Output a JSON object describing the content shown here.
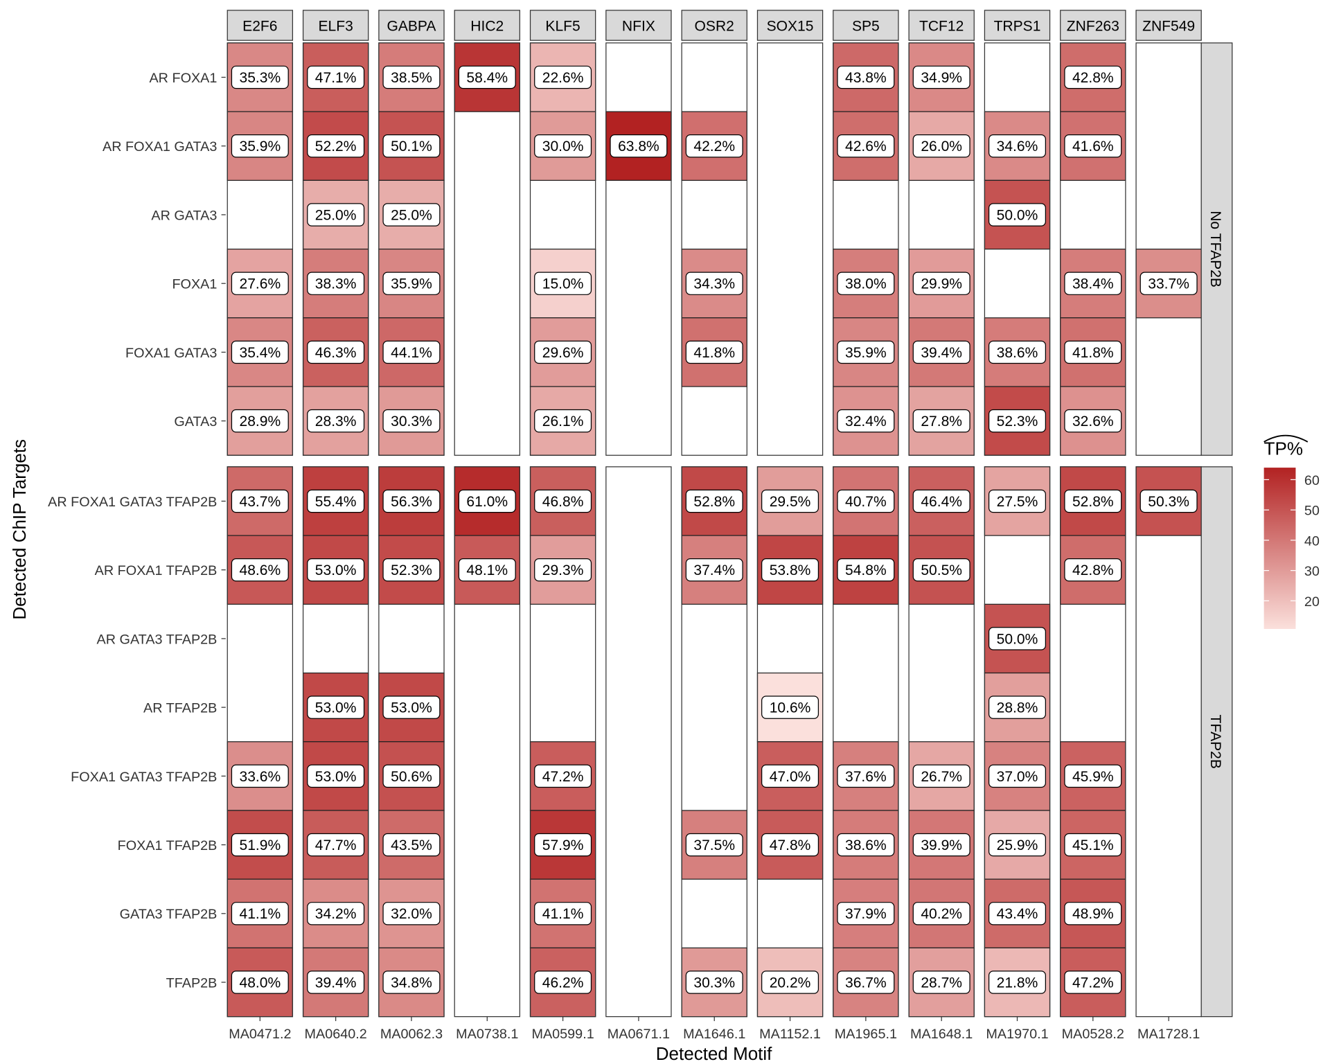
{
  "chart_data": {
    "type": "heatmap",
    "xlabel": "Detected Motif",
    "ylabel": "Detected ChIP Targets",
    "legend": {
      "title": "TP%",
      "ticks": [
        20,
        30,
        40,
        50,
        60
      ],
      "range": [
        10.6,
        63.8
      ],
      "placement": "right",
      "low_color": "#fbe0dc",
      "high_color": "#b22222"
    },
    "columns": [
      {
        "strip": "E2F6",
        "motif": "MA0471.2"
      },
      {
        "strip": "ELF3",
        "motif": "MA0640.2"
      },
      {
        "strip": "GABPA",
        "motif": "MA0062.3"
      },
      {
        "strip": "HIC2",
        "motif": "MA0738.1"
      },
      {
        "strip": "KLF5",
        "motif": "MA0599.1"
      },
      {
        "strip": "NFIX",
        "motif": "MA0671.1"
      },
      {
        "strip": "OSR2",
        "motif": "MA1646.1"
      },
      {
        "strip": "SOX15",
        "motif": "MA1152.1"
      },
      {
        "strip": "SP5",
        "motif": "MA1965.1"
      },
      {
        "strip": "TCF12",
        "motif": "MA1648.1"
      },
      {
        "strip": "TRPS1",
        "motif": "MA1970.1"
      },
      {
        "strip": "ZNF263",
        "motif": "MA0528.2"
      },
      {
        "strip": "ZNF549",
        "motif": "MA1728.1"
      }
    ],
    "panels": [
      {
        "strip": "No TFAP2B",
        "rows": [
          {
            "label": "AR FOXA1",
            "values": [
              35.3,
              47.1,
              38.5,
              58.4,
              22.6,
              null,
              null,
              null,
              43.8,
              34.9,
              null,
              42.8,
              null
            ]
          },
          {
            "label": "AR FOXA1 GATA3",
            "values": [
              35.9,
              52.2,
              50.1,
              null,
              30.0,
              63.8,
              42.2,
              null,
              42.6,
              26.0,
              34.6,
              41.6,
              null
            ]
          },
          {
            "label": "AR GATA3",
            "values": [
              null,
              25.0,
              25.0,
              null,
              null,
              null,
              null,
              null,
              null,
              null,
              50.0,
              null,
              null
            ]
          },
          {
            "label": "FOXA1",
            "values": [
              27.6,
              38.3,
              35.9,
              null,
              15.0,
              null,
              34.3,
              null,
              38.0,
              29.9,
              null,
              38.4,
              33.7
            ]
          },
          {
            "label": "FOXA1 GATA3",
            "values": [
              35.4,
              46.3,
              44.1,
              null,
              29.6,
              null,
              41.8,
              null,
              35.9,
              39.4,
              38.6,
              41.8,
              null
            ]
          },
          {
            "label": "GATA3",
            "values": [
              28.9,
              28.3,
              30.3,
              null,
              26.1,
              null,
              null,
              null,
              32.4,
              27.8,
              52.3,
              32.6,
              null
            ]
          }
        ]
      },
      {
        "strip": "TFAP2B",
        "rows": [
          {
            "label": "AR FOXA1 GATA3 TFAP2B",
            "values": [
              43.7,
              55.4,
              56.3,
              61.0,
              46.8,
              null,
              52.8,
              29.5,
              40.7,
              46.4,
              27.5,
              52.8,
              50.3
            ]
          },
          {
            "label": "AR FOXA1 TFAP2B",
            "values": [
              48.6,
              53.0,
              52.3,
              48.1,
              29.3,
              null,
              37.4,
              53.8,
              54.8,
              50.5,
              null,
              42.8,
              null
            ]
          },
          {
            "label": "AR GATA3 TFAP2B",
            "values": [
              null,
              null,
              null,
              null,
              null,
              null,
              null,
              null,
              null,
              null,
              50.0,
              null,
              null
            ]
          },
          {
            "label": "AR TFAP2B",
            "values": [
              null,
              53.0,
              53.0,
              null,
              null,
              null,
              null,
              10.6,
              null,
              null,
              28.8,
              null,
              null
            ]
          },
          {
            "label": "FOXA1 GATA3 TFAP2B",
            "values": [
              33.6,
              53.0,
              50.6,
              null,
              47.2,
              null,
              null,
              47.0,
              37.6,
              26.7,
              37.0,
              45.9,
              null
            ]
          },
          {
            "label": "FOXA1 TFAP2B",
            "values": [
              51.9,
              47.7,
              43.5,
              null,
              57.9,
              null,
              37.5,
              47.8,
              38.6,
              39.9,
              25.9,
              45.1,
              null
            ]
          },
          {
            "label": "GATA3 TFAP2B",
            "values": [
              41.1,
              34.2,
              32.0,
              null,
              41.1,
              null,
              null,
              null,
              37.9,
              40.2,
              43.4,
              48.9,
              null
            ]
          },
          {
            "label": "TFAP2B",
            "values": [
              48.0,
              39.4,
              34.8,
              null,
              46.2,
              null,
              30.3,
              20.2,
              36.7,
              28.7,
              21.8,
              47.2,
              null
            ]
          }
        ]
      }
    ]
  }
}
